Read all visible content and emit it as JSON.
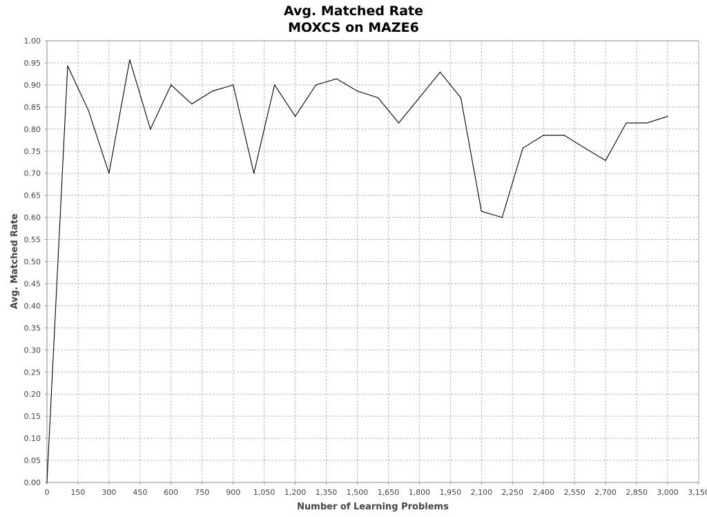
{
  "chart_data": {
    "type": "line",
    "title": "Avg. Matched Rate",
    "subtitle": "MOXCS on MAZE6",
    "xlabel": "Number of Learning Problems",
    "ylabel": "Avg. Matched Rate",
    "xlim": [
      0,
      3150
    ],
    "ylim": [
      0,
      1.0
    ],
    "grid": true,
    "x_ticks": [
      0,
      150,
      300,
      450,
      600,
      750,
      900,
      1050,
      1200,
      1350,
      1500,
      1650,
      1800,
      1950,
      2100,
      2250,
      2400,
      2550,
      2700,
      2850,
      3000,
      3150
    ],
    "x_tick_labels": [
      "0",
      "150",
      "300",
      "450",
      "600",
      "750",
      "900",
      "1,050",
      "1,200",
      "1,350",
      "1,500",
      "1,650",
      "1,800",
      "1,950",
      "2,100",
      "2,250",
      "2,400",
      "2,550",
      "2,700",
      "2,850",
      "3,000",
      "3,150"
    ],
    "y_tick_labels": [
      "0.00",
      "0.05",
      "0.10",
      "0.15",
      "0.20",
      "0.25",
      "0.30",
      "0.35",
      "0.40",
      "0.45",
      "0.50",
      "0.55",
      "0.60",
      "0.65",
      "0.70",
      "0.75",
      "0.80",
      "0.85",
      "0.90",
      "0.95",
      "1.00"
    ],
    "series": [
      {
        "color": "#000000",
        "x": [
          0,
          100,
          200,
          300,
          400,
          500,
          600,
          700,
          800,
          900,
          1000,
          1100,
          1200,
          1300,
          1400,
          1500,
          1600,
          1700,
          1800,
          1900,
          2000,
          2100,
          2200,
          2300,
          2400,
          2500,
          2600,
          2700,
          2800,
          2900,
          3000
        ],
        "y": [
          0.0,
          0.943,
          0.843,
          0.7,
          0.957,
          0.8,
          0.9,
          0.857,
          0.886,
          0.9,
          0.7,
          0.9,
          0.829,
          0.9,
          0.914,
          0.886,
          0.871,
          0.814,
          0.871,
          0.929,
          0.871,
          0.614,
          0.6,
          0.757,
          0.786,
          0.786,
          0.757,
          0.729,
          0.814,
          0.814,
          0.829
        ]
      }
    ]
  }
}
